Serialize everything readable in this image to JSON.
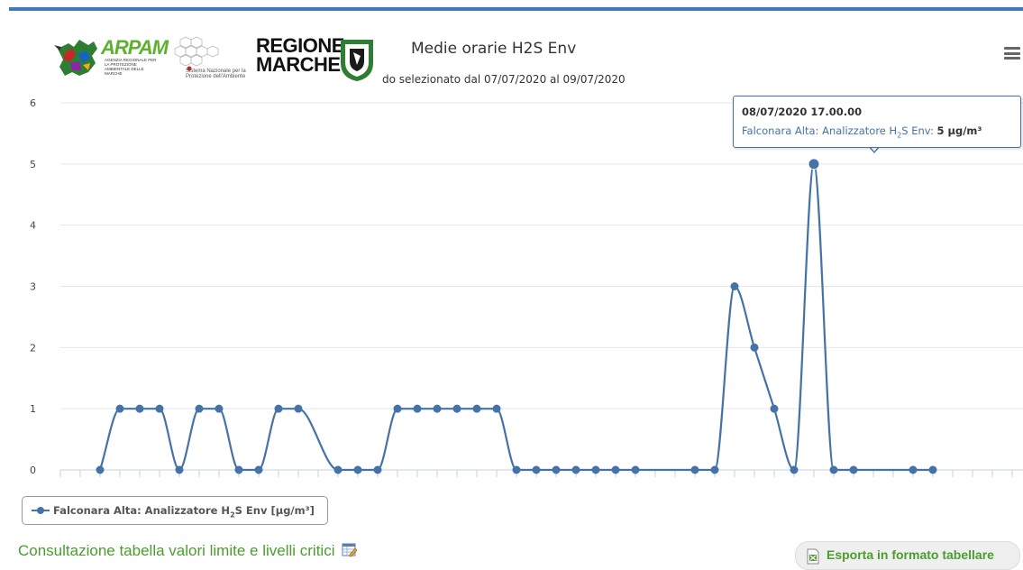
{
  "header": {
    "title": "Medie orarie H2S Env",
    "subtitle": "do selezionato dal 07/07/2020 al 09/07/2020",
    "logo_arpam": "ARPAM",
    "logo_arpam_sub": "AGENZIA REGIONALE PER LA PROTEZIONE AMBIENTALE DELLE MARCHE",
    "logo_snpa": "Sistema Nazionale per la Protezione dell'Ambiente",
    "logo_regione_line1": "REGIONE",
    "logo_regione_line2": "MARCHE",
    "menu_icon": "hamburger-icon"
  },
  "tooltip": {
    "date": "08/07/2020 17.00.00",
    "series_prefix": "Falconara Alta: Analizzatore H",
    "series_sub": "2",
    "series_suffix": "S Env",
    "value": "5 μg/m³"
  },
  "legend": {
    "prefix": "Falconara Alta: Analizzatore H",
    "sub": "2",
    "suffix": "S Env [μg/m³]"
  },
  "footer": {
    "consult_link": "Consultazione tabella valori limite e livelli critici",
    "consult_icon": "table-edit-icon",
    "export_label": "Esporta in formato tabellare",
    "export_icon": "spreadsheet-export-icon"
  },
  "colors": {
    "series": "#4572a7",
    "accent_bar": "#3d7ab8",
    "link_green": "#4a9d2e",
    "grid": "#e6e6e6"
  },
  "chart_data": {
    "type": "line",
    "title": "Medie orarie H2S Env",
    "subtitle": "do selezionato dal 07/07/2020 al 09/07/2020",
    "xlabel": "",
    "ylabel": "",
    "ylim": [
      0,
      6
    ],
    "yticks": [
      0,
      1,
      2,
      3,
      4,
      5,
      6
    ],
    "grid": true,
    "smooth": true,
    "legend_position": "bottom-left",
    "series": [
      {
        "name": "Falconara Alta: Analizzatore H2S Env [μg/m³]",
        "x": [
          2,
          3,
          4,
          5,
          6,
          7,
          8,
          9,
          10,
          11,
          12,
          14,
          15,
          16,
          17,
          18,
          19,
          20,
          21,
          22,
          23,
          24,
          25,
          26,
          27,
          28,
          29,
          32,
          33,
          34,
          35,
          36,
          37,
          38,
          39,
          40,
          43,
          44
        ],
        "values": [
          0,
          1,
          1,
          1,
          0,
          1,
          1,
          0,
          0,
          1,
          1,
          0,
          0,
          0,
          1,
          1,
          1,
          1,
          1,
          1,
          0,
          0,
          0,
          0,
          0,
          0,
          0,
          0,
          0,
          3,
          2,
          1,
          0,
          5,
          0,
          0,
          0,
          0
        ],
        "highlighted_index": 33
      }
    ]
  }
}
